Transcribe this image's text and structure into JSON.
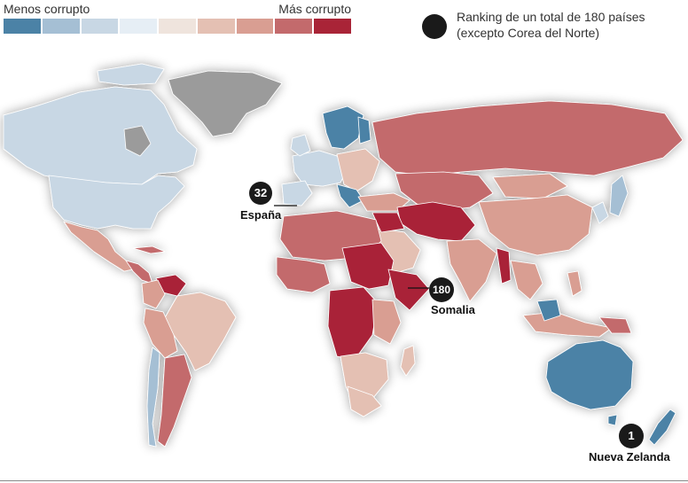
{
  "legend": {
    "low_label": "Menos corrupto",
    "high_label": "Más corrupto",
    "colors": [
      "#4b82a6",
      "#a5bfd4",
      "#c8d7e4",
      "#e6eef5",
      "#efe4dd",
      "#e4c0b3",
      "#d99e92",
      "#c36a6c",
      "#a92437"
    ]
  },
  "ranking_note": {
    "line1": "Ranking de un total de 180 países",
    "line2": "(excepto Corea del Norte)"
  },
  "callouts": {
    "spain": {
      "rank": "32",
      "name": "España"
    },
    "somalia": {
      "rank": "180",
      "name": "Somalia"
    },
    "new_zealand": {
      "rank": "1",
      "name": "Nueva Zelanda"
    }
  },
  "map_colors": {
    "no_data": "#9b9b9b",
    "ocean": "#ffffff"
  }
}
